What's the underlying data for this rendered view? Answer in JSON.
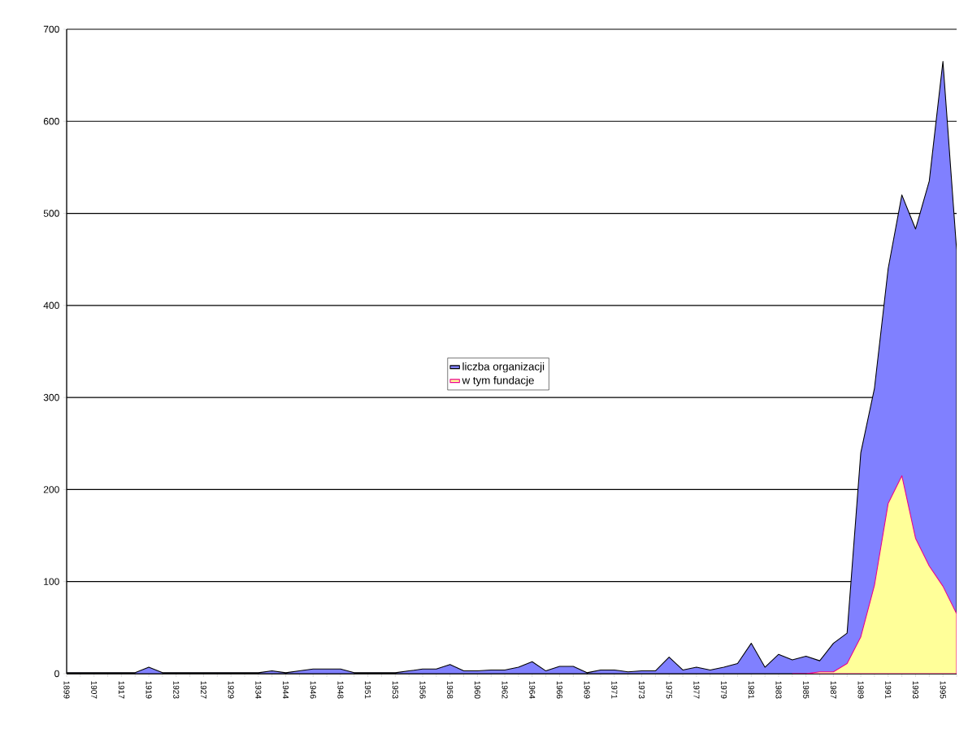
{
  "chart_data": {
    "type": "area",
    "categories": [
      "1899",
      null,
      "1907",
      null,
      "1917",
      null,
      "1919",
      null,
      "1923",
      null,
      "1927",
      null,
      "1929",
      null,
      "1934",
      null,
      "1944",
      null,
      "1946",
      null,
      "1948",
      null,
      "1951",
      null,
      "1953",
      null,
      "1956",
      null,
      "1958",
      null,
      "1960",
      null,
      "1962",
      null,
      "1964",
      null,
      "1966",
      null,
      "1969",
      null,
      "1971",
      null,
      "1973",
      null,
      "1975",
      null,
      "1977",
      null,
      "1979",
      null,
      "1981",
      null,
      "1983",
      null,
      "1985",
      null,
      "1987",
      null,
      "1989",
      null,
      "1991",
      null,
      "1993",
      null,
      "1995",
      null
    ],
    "series": [
      {
        "name": "liczba organizacji",
        "color": "#8080ff",
        "values": [
          1,
          1,
          1,
          1,
          1,
          1,
          7,
          1,
          1,
          1,
          1,
          1,
          1,
          1,
          1,
          3,
          1,
          3,
          5,
          5,
          5,
          1,
          1,
          1,
          1,
          3,
          5,
          5,
          10,
          3,
          3,
          4,
          4,
          7,
          13,
          3,
          8,
          8,
          1,
          4,
          4,
          2,
          3,
          3,
          18,
          4,
          7,
          4,
          7,
          11,
          33,
          7,
          21,
          15,
          19,
          14,
          33,
          44,
          240,
          310,
          440,
          520,
          483,
          535,
          665,
          460
        ]
      },
      {
        "name": "w tym fundacje",
        "color": "#ffff99",
        "values": [
          null,
          null,
          null,
          null,
          null,
          null,
          null,
          null,
          null,
          null,
          null,
          null,
          null,
          null,
          null,
          null,
          null,
          null,
          null,
          null,
          null,
          null,
          null,
          null,
          null,
          null,
          null,
          null,
          null,
          null,
          null,
          null,
          null,
          null,
          null,
          null,
          null,
          null,
          null,
          null,
          null,
          null,
          null,
          null,
          null,
          null,
          null,
          null,
          null,
          null,
          null,
          null,
          null,
          0,
          0,
          2,
          2,
          11,
          40,
          96,
          185,
          215,
          147,
          117,
          95,
          65
        ]
      }
    ],
    "ylim": [
      0,
      700
    ],
    "yticks": [
      0,
      100,
      200,
      300,
      400,
      500,
      600,
      700
    ],
    "grid": "y",
    "legend": "center"
  }
}
